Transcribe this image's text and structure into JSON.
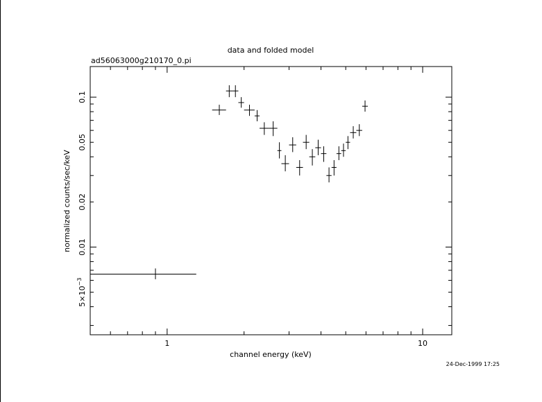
{
  "chart_data": {
    "type": "scatter",
    "title": "data and folded model",
    "subtitle": "ad56063000g210170_0.pi",
    "xlabel": "channel energy (keV)",
    "ylabel": "normalized counts/sec/keV",
    "timestamp": "24-Dec-1999 17:25",
    "xscale": "log",
    "yscale": "log",
    "xlim": [
      0.5,
      13
    ],
    "ylim": [
      0.0026,
      0.16
    ],
    "x_ticks": [
      {
        "v": 1,
        "label": "1"
      },
      {
        "v": 10,
        "label": "10"
      }
    ],
    "y_ticks": [
      {
        "v": 0.1,
        "label": "0.1"
      },
      {
        "v": 0.05,
        "label": "0.05"
      },
      {
        "v": 0.02,
        "label": "0.02"
      },
      {
        "v": 0.01,
        "label": "0.01"
      },
      {
        "v": 0.005,
        "label": "5×10",
        "exp": "−3"
      }
    ],
    "series": [
      {
        "points": [
          {
            "x": 0.9,
            "xlo": 0.5,
            "xhi": 1.3,
            "y": 0.0066,
            "ylo": 0.0061,
            "yhi": 0.0072
          },
          {
            "x": 1.6,
            "xlo": 1.5,
            "xhi": 1.7,
            "y": 0.082,
            "ylo": 0.076,
            "yhi": 0.089
          },
          {
            "x": 1.75,
            "xlo": 1.7,
            "xhi": 1.8,
            "y": 0.11,
            "ylo": 0.1,
            "yhi": 0.12
          },
          {
            "x": 1.85,
            "xlo": 1.8,
            "xhi": 1.9,
            "y": 0.11,
            "ylo": 0.1,
            "yhi": 0.12
          },
          {
            "x": 1.95,
            "xlo": 1.9,
            "xhi": 2.0,
            "y": 0.092,
            "ylo": 0.085,
            "yhi": 0.1
          },
          {
            "x": 2.1,
            "xlo": 2.0,
            "xhi": 2.2,
            "y": 0.082,
            "ylo": 0.075,
            "yhi": 0.089
          },
          {
            "x": 2.25,
            "xlo": 2.2,
            "xhi": 2.3,
            "y": 0.075,
            "ylo": 0.069,
            "yhi": 0.082
          },
          {
            "x": 2.4,
            "xlo": 2.3,
            "xhi": 2.5,
            "y": 0.062,
            "ylo": 0.056,
            "yhi": 0.068
          },
          {
            "x": 2.6,
            "xlo": 2.5,
            "xhi": 2.7,
            "y": 0.062,
            "ylo": 0.055,
            "yhi": 0.069
          },
          {
            "x": 2.75,
            "xlo": 2.7,
            "xhi": 2.8,
            "y": 0.044,
            "ylo": 0.039,
            "yhi": 0.05
          },
          {
            "x": 2.9,
            "xlo": 2.8,
            "xhi": 3.0,
            "y": 0.036,
            "ylo": 0.032,
            "yhi": 0.041
          },
          {
            "x": 3.1,
            "xlo": 3.0,
            "xhi": 3.2,
            "y": 0.048,
            "ylo": 0.043,
            "yhi": 0.054
          },
          {
            "x": 3.3,
            "xlo": 3.2,
            "xhi": 3.4,
            "y": 0.034,
            "ylo": 0.03,
            "yhi": 0.038
          },
          {
            "x": 3.5,
            "xlo": 3.4,
            "xhi": 3.6,
            "y": 0.05,
            "ylo": 0.045,
            "yhi": 0.056
          },
          {
            "x": 3.7,
            "xlo": 3.6,
            "xhi": 3.8,
            "y": 0.04,
            "ylo": 0.035,
            "yhi": 0.045
          },
          {
            "x": 3.9,
            "xlo": 3.8,
            "xhi": 4.0,
            "y": 0.046,
            "ylo": 0.041,
            "yhi": 0.052
          },
          {
            "x": 4.1,
            "xlo": 4.0,
            "xhi": 4.2,
            "y": 0.042,
            "ylo": 0.037,
            "yhi": 0.047
          },
          {
            "x": 4.3,
            "xlo": 4.2,
            "xhi": 4.4,
            "y": 0.03,
            "ylo": 0.027,
            "yhi": 0.034
          },
          {
            "x": 4.5,
            "xlo": 4.4,
            "xhi": 4.6,
            "y": 0.034,
            "ylo": 0.03,
            "yhi": 0.038
          },
          {
            "x": 4.7,
            "xlo": 4.6,
            "xhi": 4.8,
            "y": 0.042,
            "ylo": 0.038,
            "yhi": 0.047
          },
          {
            "x": 4.9,
            "xlo": 4.8,
            "xhi": 5.0,
            "y": 0.044,
            "ylo": 0.04,
            "yhi": 0.049
          },
          {
            "x": 5.1,
            "xlo": 5.0,
            "xhi": 5.2,
            "y": 0.05,
            "ylo": 0.045,
            "yhi": 0.055
          },
          {
            "x": 5.35,
            "xlo": 5.2,
            "xhi": 5.5,
            "y": 0.058,
            "ylo": 0.053,
            "yhi": 0.064
          },
          {
            "x": 5.65,
            "xlo": 5.5,
            "xhi": 5.8,
            "y": 0.06,
            "ylo": 0.055,
            "yhi": 0.066
          },
          {
            "x": 5.95,
            "xlo": 5.8,
            "xhi": 6.1,
            "y": 0.087,
            "ylo": 0.08,
            "yhi": 0.095
          }
        ]
      }
    ]
  }
}
